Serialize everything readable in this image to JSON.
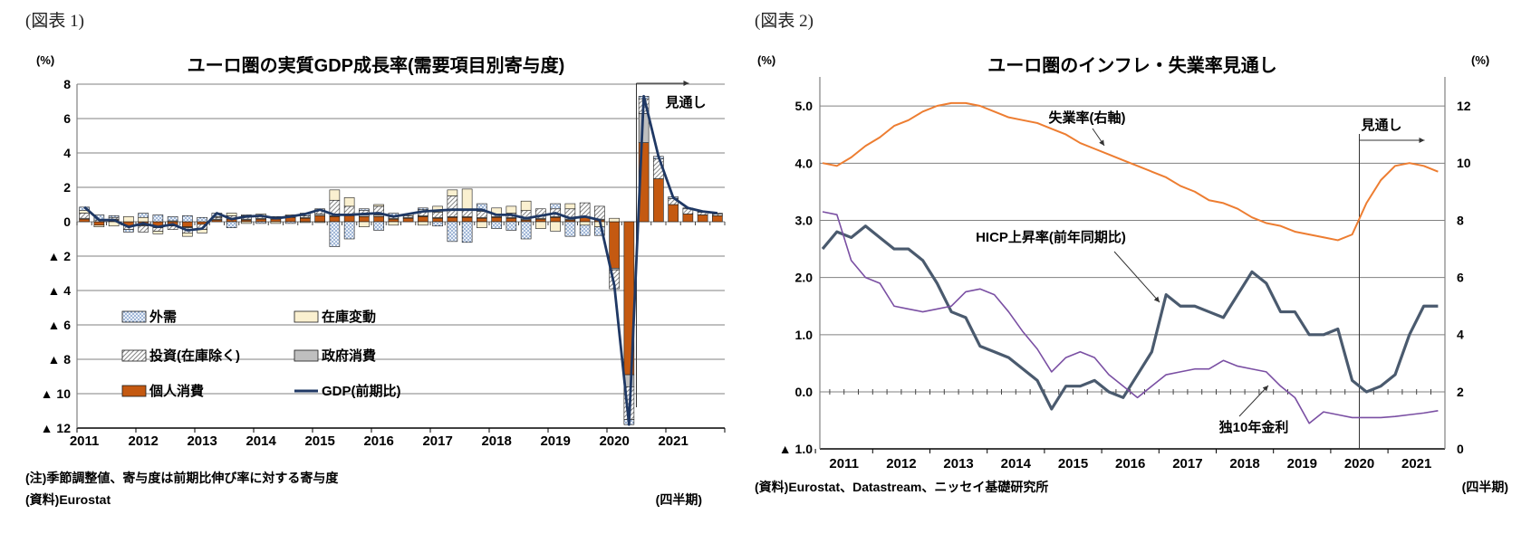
{
  "figure1": {
    "tag": "(図表 1)",
    "title": "ユーロ圏の実質GDP成長率(需要項目別寄与度)",
    "unit": "(%)",
    "note": "(注)季節調整値、寄与度は前期比伸び率に対する寄与度",
    "source": "(資料)Eurostat",
    "frequency": "(四半期)",
    "forecast_label": "見通し",
    "colors": {
      "consumption": "#C45911",
      "government": "#BFBFBF",
      "inventory": "#FAF0D0",
      "gdp_line": "#1F3864",
      "grid": "#808080",
      "axis": "#000000"
    },
    "legend": [
      {
        "label": "外需",
        "swatch": "dots"
      },
      {
        "label": "在庫変動",
        "swatch": "inventory"
      },
      {
        "label": "投資(在庫除く)",
        "swatch": "hatch"
      },
      {
        "label": "政府消費",
        "swatch": "government"
      },
      {
        "label": "個人消費",
        "swatch": "consumption"
      },
      {
        "label": "GDP(前期比)",
        "swatch": "line"
      }
    ],
    "chart_data": {
      "type": "stacked_bar_line",
      "x_years": [
        2011,
        2012,
        2013,
        2014,
        2015,
        2016,
        2017,
        2018,
        2019,
        2020,
        2021
      ],
      "categories": [
        "2011Q1",
        "2011Q2",
        "2011Q3",
        "2011Q4",
        "2012Q1",
        "2012Q2",
        "2012Q3",
        "2012Q4",
        "2013Q1",
        "2013Q2",
        "2013Q3",
        "2013Q4",
        "2014Q1",
        "2014Q2",
        "2014Q3",
        "2014Q4",
        "2015Q1",
        "2015Q2",
        "2015Q3",
        "2015Q4",
        "2016Q1",
        "2016Q2",
        "2016Q3",
        "2016Q4",
        "2017Q1",
        "2017Q2",
        "2017Q3",
        "2017Q4",
        "2018Q1",
        "2018Q2",
        "2018Q3",
        "2018Q4",
        "2019Q1",
        "2019Q2",
        "2019Q3",
        "2019Q4",
        "2020Q1",
        "2020Q2",
        "2020Q3",
        "2020Q4",
        "2021Q1",
        "2021Q2",
        "2021Q3",
        "2021Q4"
      ],
      "y_ticks": [
        8,
        6,
        4,
        2,
        0,
        -2,
        -4,
        -6,
        -8,
        -10,
        -12
      ],
      "ylim": [
        -12,
        8
      ],
      "forecast_start_index": 38,
      "series": [
        {
          "name": "個人消費",
          "key": "consumption",
          "values": [
            0.15,
            -0.2,
            0.1,
            -0.25,
            -0.2,
            -0.3,
            -0.25,
            -0.3,
            -0.15,
            0.1,
            0.15,
            0.1,
            0.15,
            0.15,
            0.25,
            0.2,
            0.35,
            0.3,
            0.35,
            0.3,
            0.3,
            0.15,
            0.2,
            0.3,
            0.2,
            0.25,
            0.25,
            0.2,
            0.25,
            0.2,
            0.1,
            0.15,
            0.25,
            0.1,
            0.25,
            0.1,
            -2.7,
            -8.9,
            4.6,
            2.5,
            1.0,
            0.45,
            0.4,
            0.35
          ]
        },
        {
          "name": "政府消費",
          "key": "government",
          "values": [
            0.05,
            0,
            0.05,
            0,
            -0.05,
            -0.05,
            0,
            -0.05,
            0,
            0.05,
            0.05,
            0.05,
            0.05,
            0.05,
            0.05,
            0.05,
            0.1,
            0.05,
            0.1,
            0.1,
            0.1,
            0.05,
            0.05,
            0.05,
            0.05,
            0.05,
            0.05,
            0.05,
            0.05,
            0.05,
            0.05,
            0.05,
            0.05,
            0.05,
            0.05,
            0.05,
            -0.1,
            -0.7,
            1.7,
            0,
            0,
            0,
            0,
            0
          ]
        },
        {
          "name": "投資(在庫除く)",
          "key": "investment",
          "values": [
            0.3,
            0.1,
            0.1,
            -0.2,
            -0.35,
            -0.2,
            -0.2,
            -0.3,
            -0.3,
            0.1,
            0.15,
            0.2,
            0.15,
            0.05,
            0.05,
            0.1,
            0.3,
            0.9,
            0.45,
            0.25,
            0.5,
            0.1,
            0.1,
            0.35,
            0.3,
            1.2,
            0.4,
            0.35,
            0.15,
            0.25,
            0.5,
            0.55,
            0.45,
            0.6,
            0.8,
            0.75,
            -1.1,
            -1.9,
            0.85,
            1.15,
            0.35,
            0.3,
            0.15,
            0.1
          ]
        },
        {
          "name": "在庫変動",
          "key": "inventory",
          "values": [
            0.15,
            -0.1,
            -0.25,
            0.3,
            0.25,
            -0.15,
            0.05,
            -0.2,
            -0.2,
            0.05,
            0.15,
            -0.1,
            0.1,
            -0.1,
            0.05,
            -0.05,
            -0.05,
            0.6,
            0.5,
            -0.3,
            0.1,
            -0.2,
            0.1,
            -0.2,
            0.35,
            0.35,
            1.2,
            -0.35,
            0.35,
            0.4,
            0.55,
            -0.4,
            -0.55,
            0.3,
            -0.2,
            -0.3,
            0.2,
            0,
            0,
            0,
            0,
            0,
            0,
            0
          ]
        },
        {
          "name": "外需",
          "key": "external",
          "values": [
            0.2,
            0.3,
            0.1,
            -0.15,
            0.25,
            0.4,
            0.25,
            0.35,
            0.25,
            0.2,
            -0.35,
            0.05,
            -0.1,
            0.05,
            -0.1,
            0.15,
            0,
            -1.45,
            -1.0,
            0.1,
            -0.5,
            0.2,
            0,
            0.1,
            -0.25,
            -1.15,
            -1.2,
            0.45,
            -0.4,
            -0.5,
            -1.0,
            0,
            0.3,
            -0.85,
            -0.6,
            -0.5,
            0,
            -0.3,
            0.15,
            0.15,
            0.1,
            0.05,
            0.05,
            0.05
          ]
        }
      ],
      "line_series": {
        "name": "GDP(前期比)",
        "values": [
          0.85,
          0.1,
          0.1,
          -0.3,
          -0.1,
          -0.3,
          -0.15,
          -0.5,
          -0.4,
          0.5,
          0.15,
          0.3,
          0.35,
          0.2,
          0.3,
          0.45,
          0.7,
          0.4,
          0.4,
          0.45,
          0.5,
          0.3,
          0.45,
          0.6,
          0.65,
          0.7,
          0.7,
          0.7,
          0.4,
          0.4,
          0.2,
          0.35,
          0.5,
          0.2,
          0.3,
          0.1,
          -3.7,
          -11.8,
          7.3,
          3.8,
          1.4,
          0.8,
          0.6,
          0.5
        ]
      }
    }
  },
  "figure2": {
    "tag": "(図表 2)",
    "title": "ユーロ圏のインフレ・失業率見通し",
    "unit_left": "(%)",
    "unit_right": "(%)",
    "source": "(資料)Eurostat、Datastream、ニッセイ基礎研究所",
    "frequency": "(四半期)",
    "forecast_label": "見通し",
    "annotations": {
      "unemployment": "失業率(右軸)",
      "hicp": "HICP上昇率(前年同期比)",
      "bund": "独10年金利"
    },
    "colors": {
      "unemployment": "#ED7D31",
      "hicp": "#4A5A6E",
      "bund": "#7A4FA3",
      "grid": "#808080",
      "axis": "#000000"
    },
    "chart_data": {
      "type": "line",
      "x_years": [
        2011,
        2012,
        2013,
        2014,
        2015,
        2016,
        2017,
        2018,
        2019,
        2020,
        2021
      ],
      "categories": [
        "2011Q1",
        "2011Q2",
        "2011Q3",
        "2011Q4",
        "2012Q1",
        "2012Q2",
        "2012Q3",
        "2012Q4",
        "2013Q1",
        "2013Q2",
        "2013Q3",
        "2013Q4",
        "2014Q1",
        "2014Q2",
        "2014Q3",
        "2014Q4",
        "2015Q1",
        "2015Q2",
        "2015Q3",
        "2015Q4",
        "2016Q1",
        "2016Q2",
        "2016Q3",
        "2016Q4",
        "2017Q1",
        "2017Q2",
        "2017Q3",
        "2017Q4",
        "2018Q1",
        "2018Q2",
        "2018Q3",
        "2018Q4",
        "2019Q1",
        "2019Q2",
        "2019Q3",
        "2019Q4",
        "2020Q1",
        "2020Q2",
        "2020Q3",
        "2020Q4",
        "2021Q1",
        "2021Q2",
        "2021Q3",
        "2021Q4"
      ],
      "left_axis": {
        "ticks": [
          5.0,
          4.0,
          3.0,
          2.0,
          1.0,
          0.0,
          -1.0
        ],
        "ylim": [
          -1.0,
          5.0
        ]
      },
      "right_axis": {
        "ticks": [
          12,
          10,
          8,
          6,
          4,
          2,
          0
        ],
        "ylim": [
          0,
          12
        ]
      },
      "forecast_start_index": 38,
      "series": [
        {
          "name": "失業率(右軸)",
          "axis": "right",
          "values": [
            10.0,
            9.9,
            10.2,
            10.6,
            10.9,
            11.3,
            11.5,
            11.8,
            12.0,
            12.1,
            12.1,
            12.0,
            11.8,
            11.6,
            11.5,
            11.4,
            11.2,
            11.0,
            10.7,
            10.5,
            10.3,
            10.1,
            9.9,
            9.7,
            9.5,
            9.2,
            9.0,
            8.7,
            8.6,
            8.4,
            8.1,
            7.9,
            7.8,
            7.6,
            7.5,
            7.4,
            7.3,
            7.5,
            8.6,
            9.4,
            9.9,
            10.0,
            9.9,
            9.7
          ]
        },
        {
          "name": "HICP上昇率(前年同期比)",
          "axis": "left",
          "values": [
            2.5,
            2.8,
            2.7,
            2.9,
            2.7,
            2.5,
            2.5,
            2.3,
            1.9,
            1.4,
            1.3,
            0.8,
            0.7,
            0.6,
            0.4,
            0.2,
            -0.3,
            0.1,
            0.1,
            0.2,
            0.0,
            -0.1,
            0.3,
            0.7,
            1.7,
            1.5,
            1.5,
            1.4,
            1.3,
            1.7,
            2.1,
            1.9,
            1.4,
            1.4,
            1.0,
            1.0,
            1.1,
            0.2,
            0.0,
            0.1,
            0.3,
            1.0,
            1.5,
            1.5
          ]
        },
        {
          "name": "独10年金利",
          "axis": "left",
          "values": [
            3.15,
            3.1,
            2.3,
            2.0,
            1.9,
            1.5,
            1.45,
            1.4,
            1.45,
            1.5,
            1.75,
            1.8,
            1.7,
            1.4,
            1.05,
            0.75,
            0.35,
            0.6,
            0.7,
            0.6,
            0.3,
            0.1,
            -0.1,
            0.1,
            0.3,
            0.35,
            0.4,
            0.4,
            0.55,
            0.45,
            0.4,
            0.35,
            0.1,
            -0.1,
            -0.55,
            -0.35,
            -0.4,
            -0.45,
            -0.45,
            -0.45,
            -0.43,
            -0.4,
            -0.37,
            -0.33
          ]
        }
      ]
    }
  }
}
